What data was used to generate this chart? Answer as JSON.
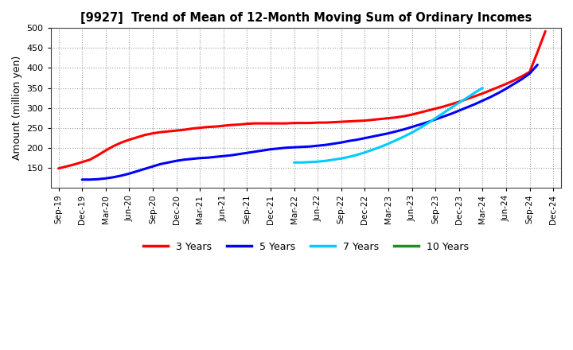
{
  "title": "[9927]  Trend of Mean of 12-Month Moving Sum of Ordinary Incomes",
  "ylabel": "Amount (million yen)",
  "ylim": [
    100,
    500
  ],
  "yticks": [
    150,
    200,
    250,
    300,
    350,
    400,
    450,
    500
  ],
  "background_color": "#ffffff",
  "grid_color": "#aaaaaa",
  "x_labels": [
    "Sep-19",
    "Dec-19",
    "Mar-20",
    "Jun-20",
    "Sep-20",
    "Dec-20",
    "Mar-21",
    "Jun-21",
    "Sep-21",
    "Dec-21",
    "Mar-22",
    "Jun-22",
    "Sep-22",
    "Dec-22",
    "Mar-23",
    "Jun-23",
    "Sep-23",
    "Dec-23",
    "Mar-24",
    "Jun-24",
    "Sep-24",
    "Dec-24"
  ],
  "x_tick_months": [
    0,
    3,
    6,
    9,
    12,
    15,
    18,
    21,
    24,
    27,
    30,
    33,
    36,
    39,
    42,
    45,
    48,
    51,
    54,
    57,
    60,
    63
  ],
  "series": {
    "3 Years": {
      "color": "#ff0000",
      "start_month": 0,
      "data": [
        148,
        153,
        158,
        164,
        170,
        181,
        193,
        204,
        213,
        220,
        226,
        232,
        236,
        239,
        241,
        243,
        245,
        248,
        250,
        252,
        253,
        255,
        257,
        258,
        260,
        261,
        261,
        261,
        261,
        261,
        262,
        262,
        262,
        263,
        263,
        264,
        265,
        266,
        267,
        268,
        270,
        272,
        274,
        276,
        279,
        283,
        288,
        293,
        298,
        303,
        309,
        315,
        322,
        329,
        336,
        344,
        352,
        360,
        369,
        379,
        390,
        440,
        492
      ]
    },
    "5 Years": {
      "color": "#0000ff",
      "start_month": 3,
      "data": [
        120,
        120,
        121,
        123,
        126,
        130,
        135,
        141,
        147,
        153,
        159,
        163,
        167,
        170,
        172,
        174,
        175,
        177,
        179,
        181,
        184,
        187,
        190,
        193,
        196,
        198,
        200,
        201,
        202,
        203,
        205,
        207,
        210,
        213,
        217,
        220,
        224,
        228,
        232,
        236,
        241,
        246,
        252,
        258,
        264,
        271,
        278,
        285,
        293,
        301,
        309,
        318,
        327,
        337,
        348,
        360,
        372,
        386,
        408
      ]
    },
    "7 Years": {
      "color": "#00ccff",
      "start_month": 30,
      "data": [
        163,
        163,
        164,
        165,
        167,
        170,
        173,
        177,
        182,
        188,
        195,
        202,
        210,
        219,
        228,
        238,
        249,
        261,
        274,
        287,
        300,
        313,
        325,
        338,
        350
      ]
    },
    "10 Years": {
      "color": "#228B22",
      "start_month": 99,
      "data": []
    }
  },
  "legend_entries": [
    "3 Years",
    "5 Years",
    "7 Years",
    "10 Years"
  ],
  "legend_colors": [
    "#ff0000",
    "#0000ff",
    "#00ccff",
    "#228B22"
  ]
}
